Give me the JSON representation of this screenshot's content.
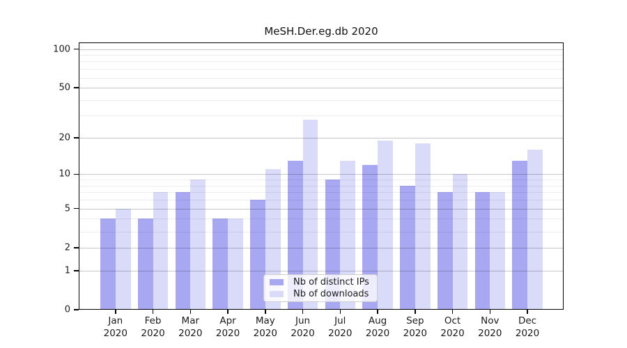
{
  "chart_data": {
    "type": "bar",
    "title": "MeSH.Der.eg.db 2020",
    "year": "2020",
    "categories": [
      "Jan",
      "Feb",
      "Mar",
      "Apr",
      "May",
      "Jun",
      "Jul",
      "Aug",
      "Sep",
      "Oct",
      "Nov",
      "Dec"
    ],
    "series": [
      {
        "name": "Nb of distinct IPs",
        "color": "#a7a7f2",
        "values": [
          4,
          4,
          7,
          4,
          6,
          13,
          9,
          12,
          8,
          7,
          7,
          13
        ]
      },
      {
        "name": "Nb of downloads",
        "color": "#dadaf9",
        "values": [
          5,
          7,
          9,
          4,
          11,
          28,
          13,
          19,
          18,
          10,
          7,
          16
        ]
      }
    ],
    "ylabel": "",
    "xlabel": "",
    "scale": "log10(1+y)",
    "ylim": [
      0,
      112
    ],
    "y_major_ticks": [
      100,
      50,
      20,
      10,
      5,
      2,
      1,
      0
    ],
    "y_minor_gridlines": [
      3,
      4,
      6,
      7,
      8,
      9,
      30,
      40,
      60,
      70,
      80,
      90
    ],
    "grid": true,
    "legend_position": "lower center",
    "frame_color": "#000000",
    "background_color": "#ffffff"
  }
}
